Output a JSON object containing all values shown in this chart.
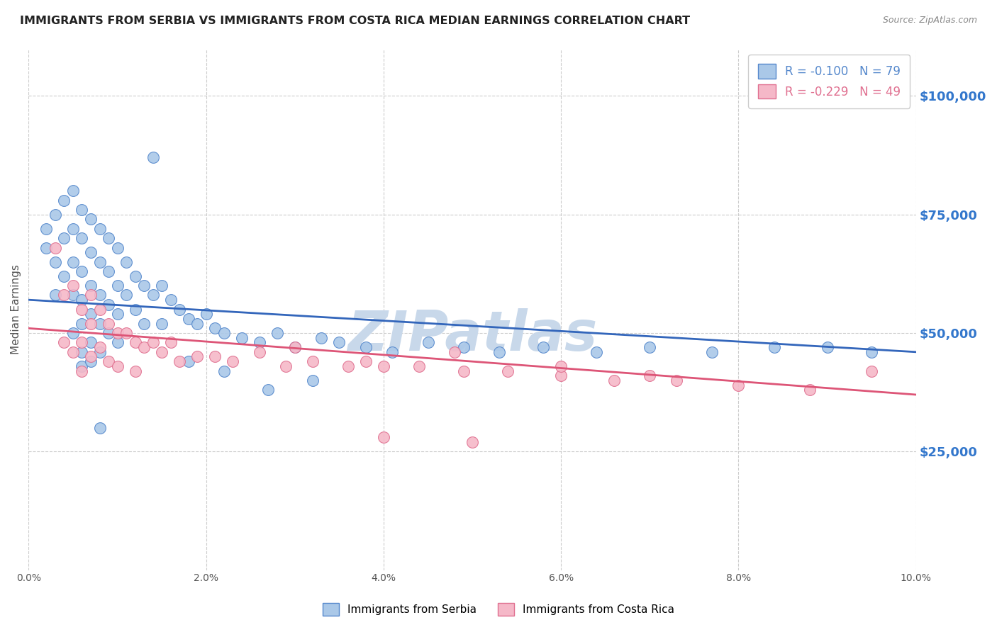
{
  "title": "IMMIGRANTS FROM SERBIA VS IMMIGRANTS FROM COSTA RICA MEDIAN EARNINGS CORRELATION CHART",
  "source": "Source: ZipAtlas.com",
  "ylabel": "Median Earnings",
  "xlim": [
    0.0,
    0.1
  ],
  "ylim": [
    0,
    110000
  ],
  "yticks": [
    25000,
    50000,
    75000,
    100000
  ],
  "xticks": [
    0.0,
    0.02,
    0.04,
    0.06,
    0.08,
    0.1
  ],
  "xtick_labels": [
    "0.0%",
    "2.0%",
    "4.0%",
    "6.0%",
    "8.0%",
    "10.0%"
  ],
  "ytick_labels": [
    "$25,000",
    "$50,000",
    "$75,000",
    "$100,000"
  ],
  "series_serbia": {
    "label": "Immigrants from Serbia",
    "color": "#aac8e8",
    "edge_color": "#5588cc",
    "trend_color": "#3366bb"
  },
  "series_costa_rica": {
    "label": "Immigrants from Costa Rica",
    "color": "#f5b8c8",
    "edge_color": "#e07090",
    "trend_color": "#dd5577"
  },
  "legend_R_serbia": "R = -0.100",
  "legend_N_serbia": "N = 79",
  "legend_R_costa_rica": "R = -0.229",
  "legend_N_costa_rica": "N = 49",
  "watermark": "ZIPatlas",
  "watermark_color": "#c8d8ea",
  "background_color": "#ffffff",
  "grid_color": "#cccccc",
  "title_color": "#222222",
  "axis_label_color": "#555555",
  "right_ytick_color": "#3377cc",
  "serbia_scatter_x": [
    0.002,
    0.002,
    0.003,
    0.003,
    0.003,
    0.004,
    0.004,
    0.004,
    0.005,
    0.005,
    0.005,
    0.005,
    0.005,
    0.006,
    0.006,
    0.006,
    0.006,
    0.006,
    0.006,
    0.006,
    0.007,
    0.007,
    0.007,
    0.007,
    0.007,
    0.007,
    0.008,
    0.008,
    0.008,
    0.008,
    0.008,
    0.009,
    0.009,
    0.009,
    0.009,
    0.01,
    0.01,
    0.01,
    0.01,
    0.011,
    0.011,
    0.012,
    0.012,
    0.013,
    0.013,
    0.014,
    0.015,
    0.015,
    0.016,
    0.017,
    0.018,
    0.019,
    0.02,
    0.021,
    0.022,
    0.024,
    0.026,
    0.028,
    0.03,
    0.033,
    0.035,
    0.038,
    0.041,
    0.045,
    0.049,
    0.053,
    0.058,
    0.064,
    0.07,
    0.077,
    0.084,
    0.09,
    0.095,
    0.014,
    0.032,
    0.018,
    0.022,
    0.027,
    0.008
  ],
  "serbia_scatter_y": [
    72000,
    68000,
    75000,
    65000,
    58000,
    78000,
    70000,
    62000,
    80000,
    72000,
    65000,
    58000,
    50000,
    76000,
    70000,
    63000,
    57000,
    52000,
    46000,
    43000,
    74000,
    67000,
    60000,
    54000,
    48000,
    44000,
    72000,
    65000,
    58000,
    52000,
    46000,
    70000,
    63000,
    56000,
    50000,
    68000,
    60000,
    54000,
    48000,
    65000,
    58000,
    62000,
    55000,
    60000,
    52000,
    58000,
    60000,
    52000,
    57000,
    55000,
    53000,
    52000,
    54000,
    51000,
    50000,
    49000,
    48000,
    50000,
    47000,
    49000,
    48000,
    47000,
    46000,
    48000,
    47000,
    46000,
    47000,
    46000,
    47000,
    46000,
    47000,
    47000,
    46000,
    87000,
    40000,
    44000,
    42000,
    38000,
    30000
  ],
  "costa_rica_scatter_x": [
    0.003,
    0.004,
    0.004,
    0.005,
    0.005,
    0.006,
    0.006,
    0.006,
    0.007,
    0.007,
    0.007,
    0.008,
    0.008,
    0.009,
    0.009,
    0.01,
    0.01,
    0.011,
    0.012,
    0.012,
    0.013,
    0.014,
    0.015,
    0.016,
    0.017,
    0.019,
    0.021,
    0.023,
    0.026,
    0.029,
    0.032,
    0.036,
    0.04,
    0.044,
    0.049,
    0.054,
    0.06,
    0.066,
    0.073,
    0.08,
    0.088,
    0.095,
    0.03,
    0.038,
    0.048,
    0.06,
    0.07,
    0.04,
    0.05
  ],
  "costa_rica_scatter_y": [
    68000,
    58000,
    48000,
    60000,
    46000,
    55000,
    48000,
    42000,
    58000,
    52000,
    45000,
    55000,
    47000,
    52000,
    44000,
    50000,
    43000,
    50000,
    48000,
    42000,
    47000,
    48000,
    46000,
    48000,
    44000,
    45000,
    45000,
    44000,
    46000,
    43000,
    44000,
    43000,
    43000,
    43000,
    42000,
    42000,
    41000,
    40000,
    40000,
    39000,
    38000,
    42000,
    47000,
    44000,
    46000,
    43000,
    41000,
    28000,
    27000
  ]
}
